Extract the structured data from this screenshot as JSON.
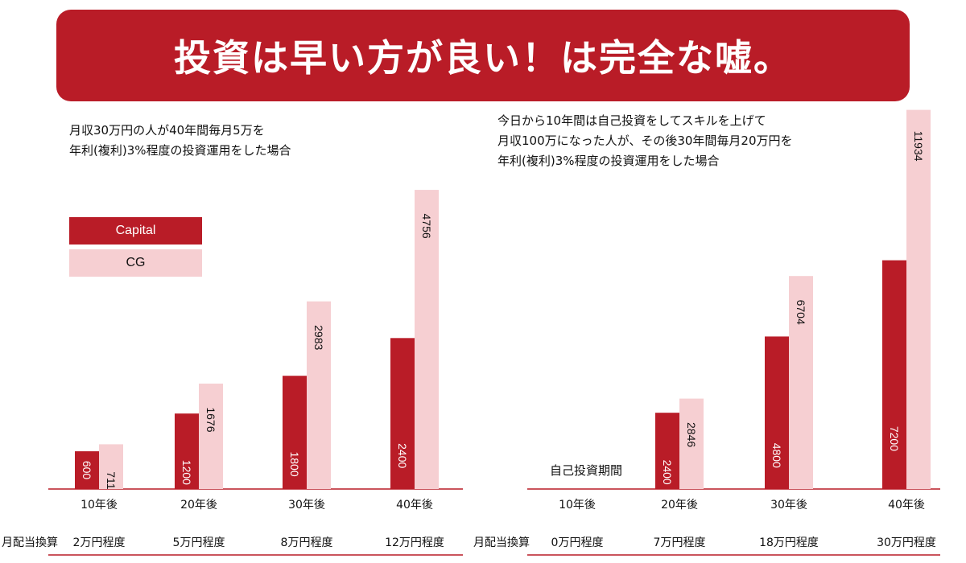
{
  "title": "投資は早い方が良い！は完全な嘘。",
  "legend": {
    "capital": "Capital",
    "cg": "CG"
  },
  "colors": {
    "capital": "#b91c27",
    "cg": "#f6cfd2",
    "axis": "#b91c27"
  },
  "row_label": "月配当換算",
  "chart_data": [
    {
      "type": "bar",
      "description_lines": [
        "月収30万円の人が40年間毎月5万を",
        "年利(複利)3%程度の投資運用をした場合"
      ],
      "categories": [
        "10年後",
        "20年後",
        "30年後",
        "40年後"
      ],
      "series": [
        {
          "name": "Capital",
          "values": [
            600,
            1200,
            1800,
            2400
          ]
        },
        {
          "name": "CG",
          "values": [
            711,
            1676,
            2983,
            4756
          ]
        }
      ],
      "monthly_dividend": [
        "2万円程度",
        "5万円程度",
        "8万円程度",
        "12万円程度"
      ]
    },
    {
      "type": "bar",
      "description_lines": [
        "今日から10年間は自己投資をしてスキルを上げて",
        "月収100万になった人が、その後30年間毎月20万円を",
        "年利(複利)3%程度の投資運用をした場合"
      ],
      "categories": [
        "10年後",
        "20年後",
        "30年後",
        "40年後"
      ],
      "series": [
        {
          "name": "Capital",
          "values": [
            0,
            2400,
            4800,
            7200
          ]
        },
        {
          "name": "CG",
          "values": [
            0,
            2846,
            6704,
            11934
          ]
        }
      ],
      "monthly_dividend": [
        "0万円程度",
        "7万円程度",
        "18万円程度",
        "30万円程度"
      ],
      "annotation": "自己投資期間"
    }
  ]
}
